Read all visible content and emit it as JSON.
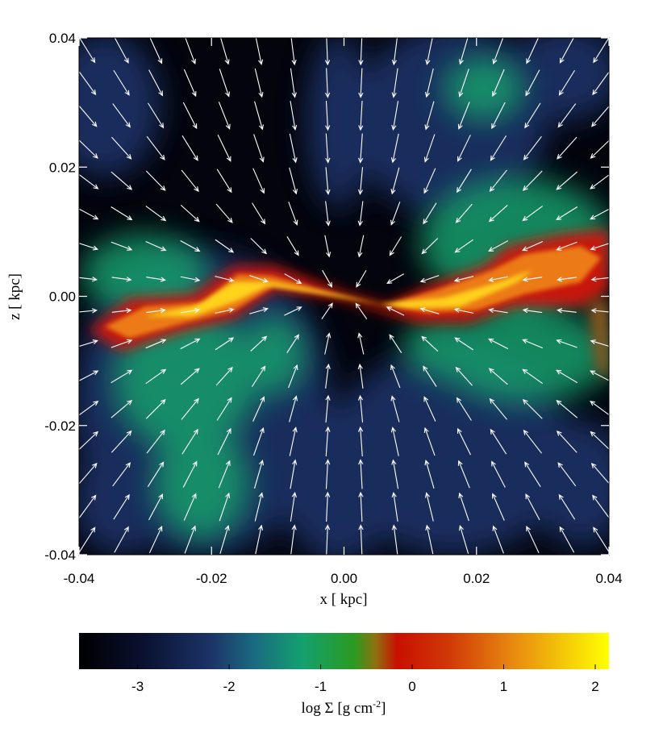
{
  "chart_data": {
    "type": "heatmap",
    "xlabel": "x [ kpc]",
    "ylabel": "z [ kpc]",
    "xlim": [
      -0.04,
      0.04
    ],
    "xticks": [
      -0.04,
      -0.02,
      {
        "value": 0,
        "label": "0.00"
      },
      0.02,
      0.04
    ],
    "ylim": [
      -0.04,
      0.04
    ],
    "yticks": [
      -0.04,
      -0.02,
      {
        "value": 0,
        "label": "0.00"
      },
      0.02,
      0.04
    ],
    "colorbar": {
      "label_parts": [
        "log Σ [g cm",
        "-2",
        "]"
      ],
      "clim": [
        -3.64,
        2.15
      ],
      "ticks": [
        -3,
        -2,
        -1,
        0,
        1,
        2
      ]
    }
  }
}
